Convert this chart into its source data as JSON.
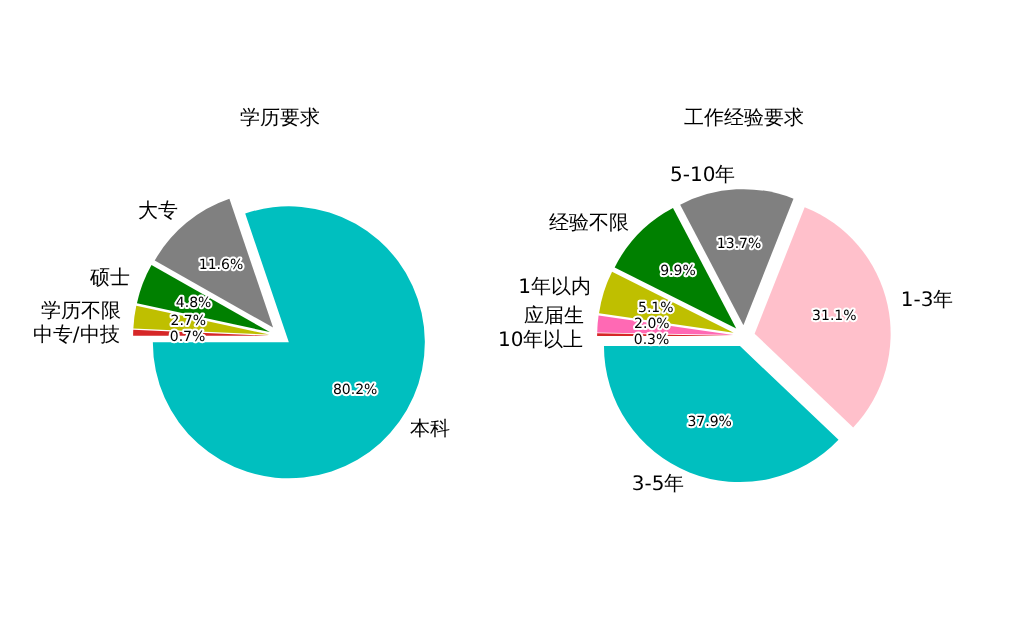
{
  "chart_data": [
    {
      "type": "pie",
      "title": "学历要求",
      "categories": [
        "本科",
        "大专",
        "硕士",
        "学历不限",
        "中专/中技"
      ],
      "values": [
        80.2,
        11.6,
        4.8,
        2.7,
        0.7
      ],
      "colors": [
        "#00bfbf",
        "#808080",
        "#008000",
        "#bfbf00",
        "#d62728"
      ],
      "value_labels": [
        "80.2%",
        "11.6%",
        "4.8%",
        "2.7%",
        "0.7%"
      ]
    },
    {
      "type": "pie",
      "title": "工作经验要求",
      "categories": [
        "3-5年",
        "1-3年",
        "5-10年",
        "经验不限",
        "1年以内",
        "应届生",
        "10年以上"
      ],
      "values": [
        37.9,
        31.1,
        13.7,
        9.9,
        5.1,
        2.0,
        0.3
      ],
      "colors": [
        "#00bfbf",
        "#ffc0cb",
        "#808080",
        "#008000",
        "#bfbf00",
        "#ff69b4",
        "#d62728"
      ],
      "value_labels": [
        "37.9%",
        "31.1%",
        "13.7%",
        "9.9%",
        "5.1%",
        "2.0%",
        "0.3%"
      ]
    }
  ]
}
